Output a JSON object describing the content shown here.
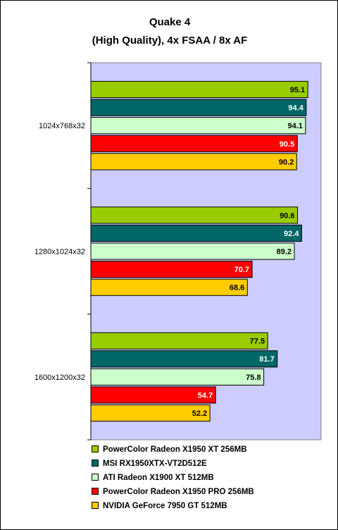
{
  "chart_data": {
    "type": "bar",
    "orientation": "horizontal",
    "title": "Quake 4",
    "subtitle": "(High Quality), 4x FSAA / 8x AF",
    "xlabel": "",
    "ylabel": "",
    "xlim": [
      0,
      100
    ],
    "grid": false,
    "legend_position": "bottom",
    "categories": [
      "1024x768x32",
      "1280x1024x32",
      "1600x1200x32"
    ],
    "series": [
      {
        "name": "PowerColor Radeon X1950 XT 256MB",
        "color": "#99cc00",
        "label_color": "#000000",
        "values": [
          95.1,
          90.6,
          77.5
        ]
      },
      {
        "name": "MSI RX1950XTX-VT2D512E",
        "color": "#006666",
        "label_color": "#ffffff",
        "values": [
          94.4,
          92.4,
          81.7
        ]
      },
      {
        "name": "ATI Radeon X1900 XT 512MB",
        "color": "#ccffcc",
        "label_color": "#000000",
        "values": [
          94.1,
          89.2,
          75.8
        ]
      },
      {
        "name": "PowerColor Radeon X1950 PRO 256MB",
        "color": "#ff0000",
        "label_color": "#ffffff",
        "values": [
          90.5,
          70.7,
          54.7
        ]
      },
      {
        "name": "NVIDIA GeForce 7950 GT 512MB",
        "color": "#ffcc00",
        "label_color": "#000000",
        "values": [
          90.2,
          68.6,
          52.2
        ]
      }
    ]
  },
  "colors": {
    "plot_background": "#ccccff",
    "axis": "#000000",
    "bar_outline": "#000000"
  }
}
